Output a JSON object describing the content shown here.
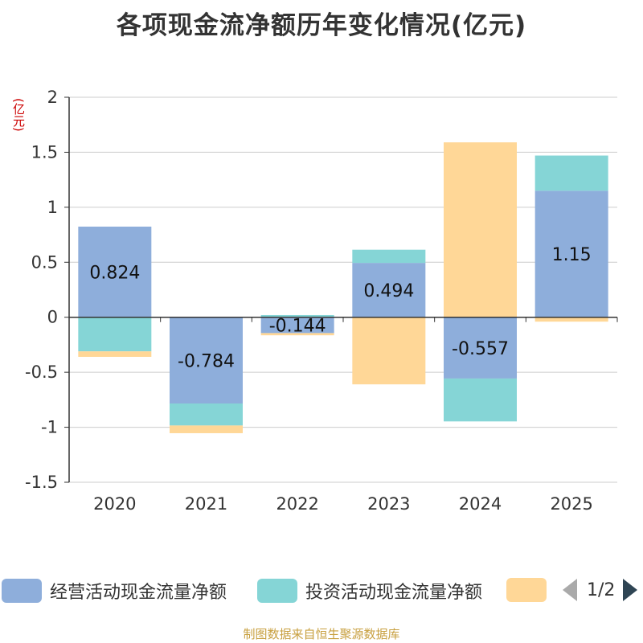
{
  "chart_data": {
    "type": "bar",
    "stacked": true,
    "title": "各项现金流净额历年变化情况(亿元)",
    "ylabel": "(亿元)",
    "xlabel": "",
    "categories": [
      "2020",
      "2021",
      "2022",
      "2023",
      "2024",
      "2025"
    ],
    "ylim": [
      -1.5,
      2
    ],
    "yticks": [
      2,
      1.5,
      1,
      0.5,
      0,
      -0.5,
      -1,
      -1.5
    ],
    "ytick_labels": [
      "2",
      "1.5",
      "1",
      "0.5",
      "0",
      "-0.5",
      "-1",
      "-1.5"
    ],
    "series": [
      {
        "name": "经营活动现金流量净额",
        "color": "#8eaedb",
        "values": [
          0.824,
          -0.784,
          -0.144,
          0.494,
          -0.557,
          1.15
        ]
      },
      {
        "name": "投资活动现金流量净额",
        "color": "#85d5d6",
        "values": [
          -0.31,
          -0.2,
          0.02,
          0.12,
          -0.39,
          0.32
        ]
      },
      {
        "name": "",
        "color": "#ffd797",
        "values": [
          -0.05,
          -0.07,
          -0.02,
          -0.61,
          1.59,
          -0.04
        ]
      }
    ],
    "data_labels": [
      "0.824",
      "-0.784",
      "-0.144",
      "0.494",
      "-0.557",
      "1.15"
    ],
    "legend": {
      "position": "bottom"
    }
  },
  "pager": {
    "text": "1/2"
  },
  "footer": {
    "text": "制图数据来自恒生聚源数据库"
  }
}
